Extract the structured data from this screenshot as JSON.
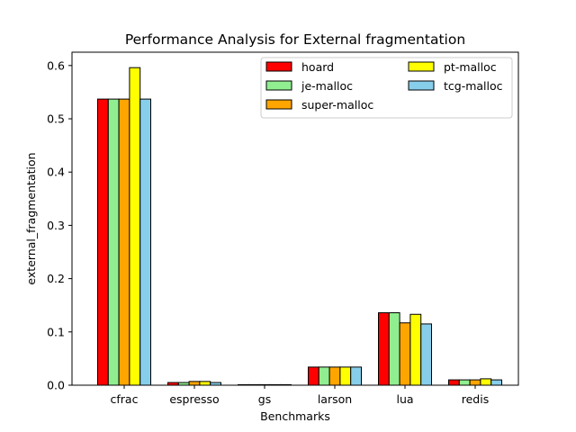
{
  "chart_data": {
    "type": "bar",
    "title": "Performance Analysis for External fragmentation",
    "xlabel": "Benchmarks",
    "ylabel": "external_fragmentation",
    "categories": [
      "cfrac",
      "espresso",
      "gs",
      "larson",
      "lua",
      "redis"
    ],
    "ylim": [
      0,
      0.625
    ],
    "yticks": [
      0.0,
      0.1,
      0.2,
      0.3,
      0.4,
      0.5,
      0.6
    ],
    "ytick_labels": [
      "0.0",
      "0.1",
      "0.2",
      "0.3",
      "0.4",
      "0.5",
      "0.6"
    ],
    "grid": false,
    "legend_position": "top-right",
    "legend_columns": 2,
    "series": [
      {
        "name": "hoard",
        "color": "#ff0000",
        "values": [
          0.537,
          0.005,
          0.001,
          0.034,
          0.136,
          0.01
        ]
      },
      {
        "name": "je-malloc",
        "color": "#90ee90",
        "values": [
          0.537,
          0.005,
          0.001,
          0.034,
          0.136,
          0.01
        ]
      },
      {
        "name": "super-malloc",
        "color": "#ffa500",
        "values": [
          0.537,
          0.007,
          0.001,
          0.034,
          0.117,
          0.01
        ]
      },
      {
        "name": "pt-malloc",
        "color": "#ffff00",
        "values": [
          0.596,
          0.007,
          0.001,
          0.034,
          0.133,
          0.012
        ]
      },
      {
        "name": "tcg-malloc",
        "color": "#87ceeb",
        "values": [
          0.537,
          0.005,
          0.001,
          0.034,
          0.115,
          0.01
        ]
      }
    ]
  }
}
